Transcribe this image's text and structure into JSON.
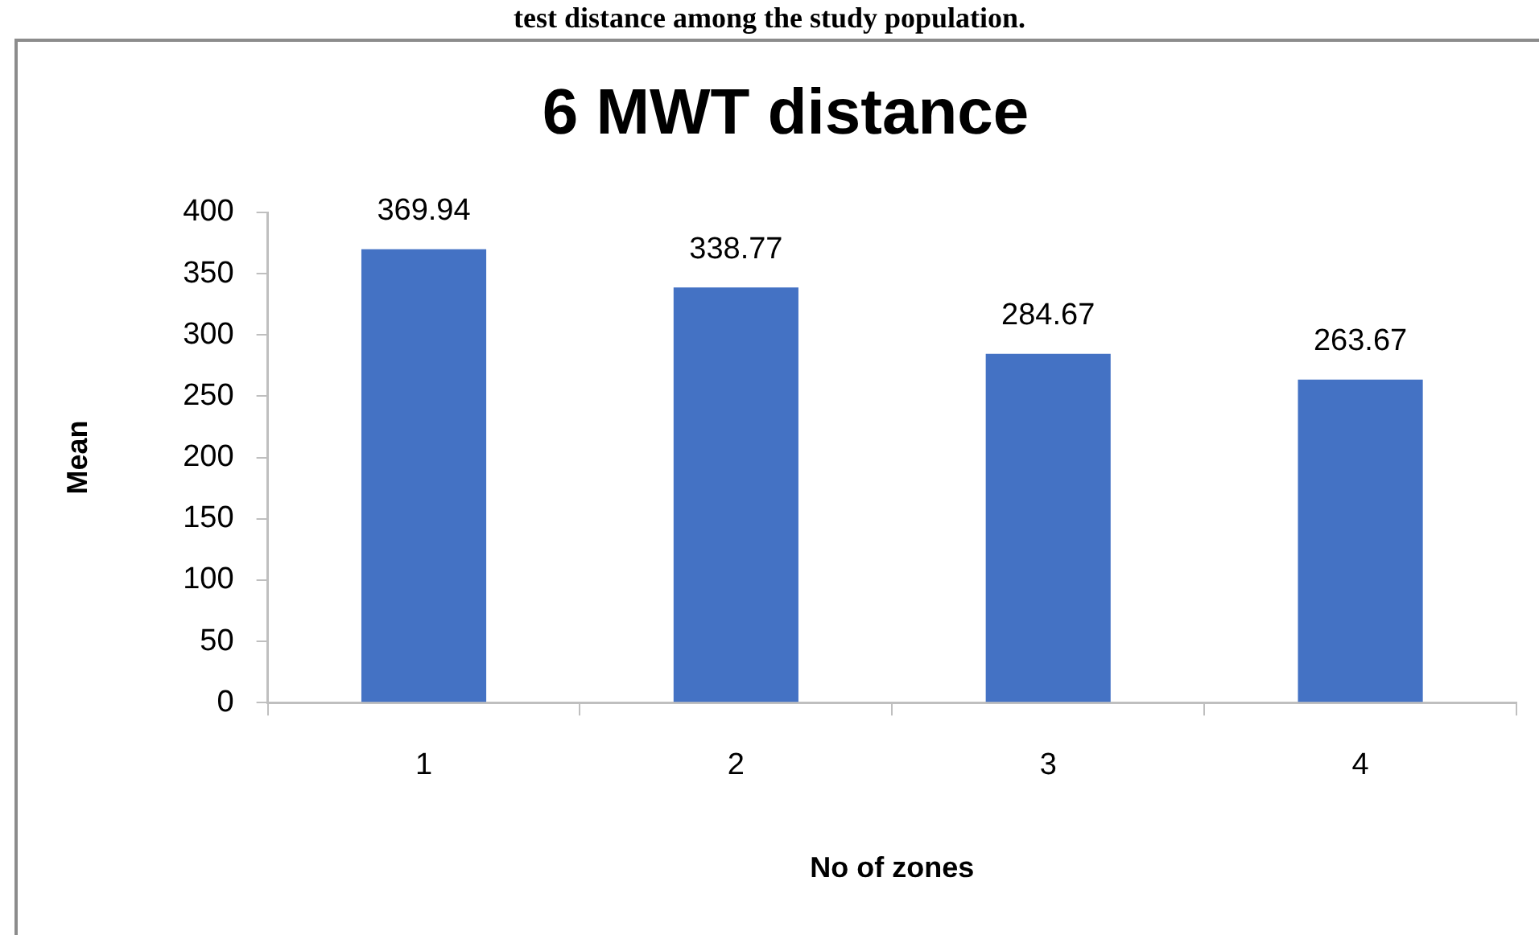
{
  "chart_data": {
    "type": "bar",
    "title": "6 MWT distance",
    "xlabel": "No of zones",
    "ylabel": "Mean",
    "categories": [
      "1",
      "2",
      "3",
      "4"
    ],
    "values": [
      369.94,
      338.77,
      284.67,
      263.67
    ],
    "color": "#4472c4",
    "ylim": [
      0,
      400
    ],
    "yticks": [
      0,
      50,
      100,
      150,
      200,
      250,
      300,
      350,
      400
    ],
    "data_labels": true,
    "annotations": [
      "test distance among the study population."
    ]
  }
}
